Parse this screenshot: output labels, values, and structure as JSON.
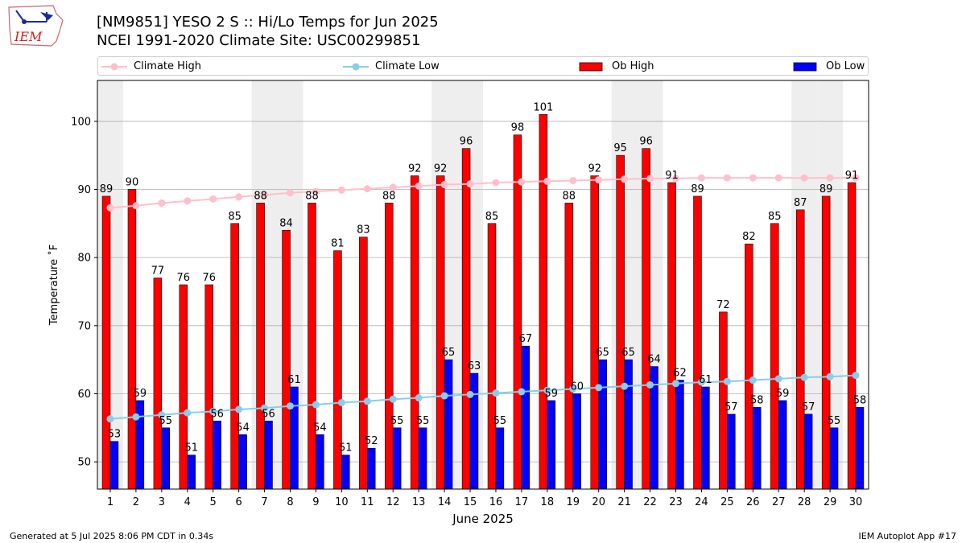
{
  "header": {
    "title_line1": "[NM9851] YESO 2 S :: Hi/Lo Temps for Jun 2025",
    "title_line2": "NCEI 1991-2020 Climate Site: USC00299851",
    "logo_text": "IEM"
  },
  "footer": {
    "generated": "Generated at 5 Jul 2025 8:06 PM CDT in 0.34s",
    "app": "IEM Autoplot App #17"
  },
  "colors": {
    "ob_high": "#ff0000",
    "ob_low": "#0000ff",
    "climate_high": "#ffc0cb",
    "climate_low": "#87ceeb",
    "weekend_shade": "#eeeeee",
    "grid": "#b0b0b0"
  },
  "chart_data": {
    "type": "bar",
    "xlabel": "June 2025",
    "ylabel": "Temperature ˚F",
    "ylim": [
      46,
      106
    ],
    "yticks": [
      50,
      60,
      70,
      80,
      90,
      100
    ],
    "grid": "horizontal",
    "legend_position": "top",
    "categories": [
      "1",
      "2",
      "3",
      "4",
      "5",
      "6",
      "7",
      "8",
      "9",
      "10",
      "11",
      "12",
      "13",
      "14",
      "15",
      "16",
      "17",
      "18",
      "19",
      "20",
      "21",
      "22",
      "23",
      "24",
      "25",
      "26",
      "27",
      "28",
      "29",
      "30"
    ],
    "shaded_days": [
      1,
      7,
      8,
      14,
      15,
      21,
      22,
      28,
      29
    ],
    "series": [
      {
        "name": "Ob High",
        "kind": "bar",
        "values": [
          89,
          90,
          77,
          76,
          76,
          85,
          88,
          84,
          88,
          81,
          83,
          88,
          92,
          92,
          96,
          85,
          98,
          101,
          88,
          92,
          95,
          96,
          91,
          89,
          72,
          82,
          85,
          87,
          89,
          91
        ]
      },
      {
        "name": "Ob Low",
        "kind": "bar",
        "values": [
          53,
          59,
          55,
          51,
          56,
          54,
          56,
          61,
          54,
          51,
          52,
          55,
          55,
          65,
          63,
          55,
          67,
          59,
          60,
          65,
          65,
          64,
          62,
          61,
          57,
          58,
          59,
          57,
          55,
          58
        ]
      },
      {
        "name": "Climate High",
        "kind": "line",
        "values": [
          87.3,
          87.6,
          88.0,
          88.3,
          88.6,
          88.9,
          89.2,
          89.5,
          89.7,
          89.9,
          90.1,
          90.3,
          90.5,
          90.7,
          90.8,
          91.0,
          91.1,
          91.2,
          91.3,
          91.4,
          91.5,
          91.6,
          91.6,
          91.7,
          91.7,
          91.7,
          91.7,
          91.7,
          91.7,
          91.7
        ]
      },
      {
        "name": "Climate Low",
        "kind": "line",
        "values": [
          56.3,
          56.6,
          56.9,
          57.2,
          57.4,
          57.7,
          57.9,
          58.2,
          58.4,
          58.7,
          58.9,
          59.2,
          59.4,
          59.7,
          59.9,
          60.1,
          60.3,
          60.5,
          60.7,
          60.9,
          61.1,
          61.3,
          61.5,
          61.7,
          61.8,
          62.0,
          62.2,
          62.4,
          62.5,
          62.7
        ]
      }
    ]
  }
}
